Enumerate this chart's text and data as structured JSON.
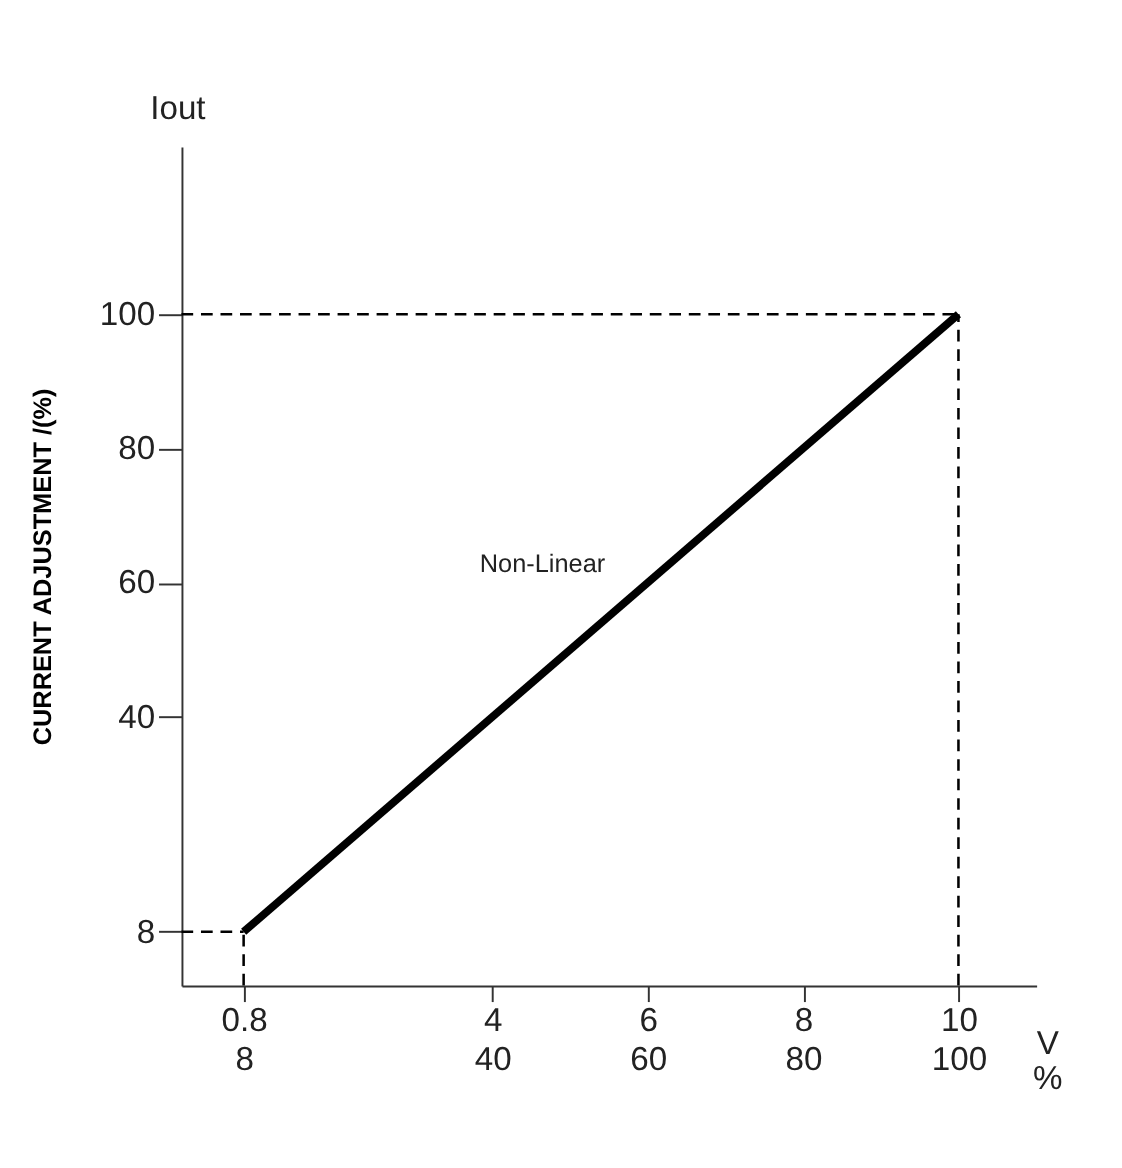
{
  "chart_data": {
    "type": "line",
    "xlabel": "V",
    "x2label": "%",
    "ylabel": "CURRENT ADJUSTMENT /(%)",
    "annotations": [
      "Iout"
    ],
    "series": [
      {
        "name": "Non-Linear",
        "x": [
          0.8,
          10
        ],
        "values": [
          8,
          100
        ],
        "color": "#000000",
        "line_style": "solid"
      },
      {
        "x": [
          0,
          0.8
        ],
        "values": [
          8,
          8
        ],
        "color": "#000000",
        "line_style": "dashed"
      },
      {
        "x": [
          0.8,
          0.8
        ],
        "values": [
          0,
          8
        ],
        "color": "#000000",
        "line_style": "dashed"
      },
      {
        "x": [
          0,
          10
        ],
        "values": [
          100,
          100
        ],
        "color": "#000000",
        "line_style": "dashed"
      },
      {
        "x": [
          10,
          10
        ],
        "values": [
          0,
          100
        ],
        "color": "#000000",
        "line_style": "dashed"
      }
    ],
    "xlim": [
      0,
      11
    ],
    "ylim": [
      0,
      125
    ],
    "xticks": [
      0.8,
      4,
      6,
      8,
      10
    ],
    "x2lim": [
      0,
      110
    ],
    "x2ticks": [
      8,
      40,
      60,
      80,
      100
    ],
    "yticks": [
      8,
      40,
      60,
      80,
      100
    ],
    "grid": false,
    "legend": false,
    "marker": "none"
  }
}
